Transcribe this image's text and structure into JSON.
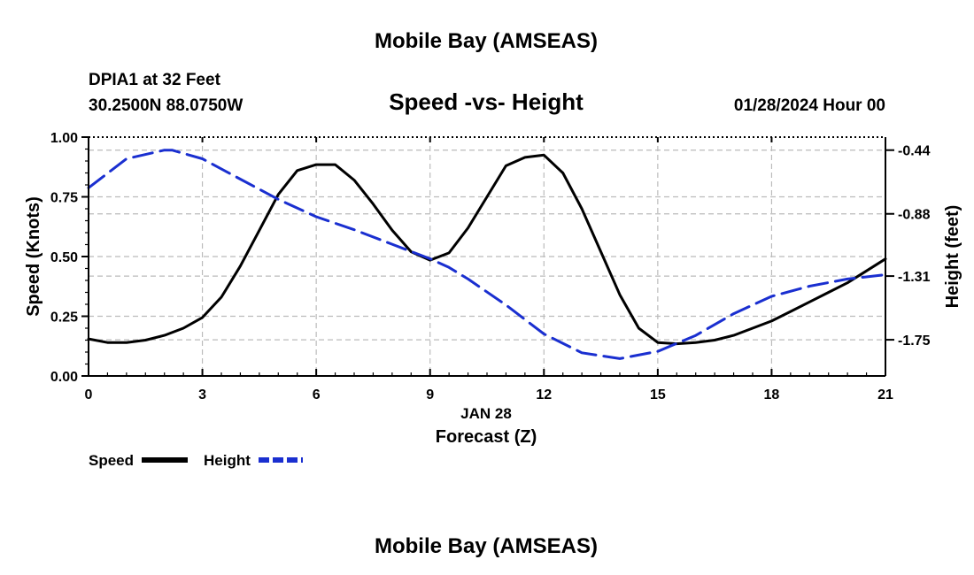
{
  "page": {
    "top_title": "Mobile Bay (AMSEAS)",
    "bottom_title": "Mobile Bay (AMSEAS)"
  },
  "station": {
    "line1": "DPIA1 at 32 Feet",
    "line2": "30.2500N  88.0750W"
  },
  "forecast_time": "01/28/2024 Hour 00",
  "legend": {
    "speed_label": "Speed",
    "height_label": "Height"
  },
  "colors": {
    "speed": "#000000",
    "height": "#1a2fd0",
    "grid": "#bbbbbb"
  },
  "chart_data": {
    "type": "line",
    "title": "Speed -vs- Height",
    "xlabel": "Forecast (Z)",
    "x_date_label": "JAN 28",
    "ylabel": "Speed (Knots)",
    "y2label": "Height (feet)",
    "xlim": [
      0,
      21
    ],
    "ylim": [
      0,
      1
    ],
    "y2lim": [
      -2.0,
      -0.35
    ],
    "x_ticks": [
      0,
      3,
      6,
      9,
      12,
      15,
      18,
      21
    ],
    "y_ticks": [
      0.0,
      0.25,
      0.5,
      0.75,
      1.0
    ],
    "y_tick_labels": [
      "0.00",
      "0.25",
      "0.50",
      "0.75",
      "1.00"
    ],
    "y2_ticks": [
      -0.44,
      -0.88,
      -1.31,
      -1.75
    ],
    "y2_tick_labels": [
      "-0.44",
      "-0.88",
      "-1.31",
      "-1.75"
    ],
    "grid": true,
    "series": [
      {
        "name": "Speed",
        "axis": "left",
        "style": "solid",
        "x": [
          0,
          0.5,
          1,
          1.5,
          2,
          2.5,
          3,
          3.5,
          4,
          4.5,
          5,
          5.5,
          6,
          6.5,
          7,
          7.5,
          8,
          8.5,
          9,
          9.5,
          10,
          10.5,
          11,
          11.5,
          12,
          12.5,
          13,
          13.5,
          14,
          14.5,
          15,
          15.5,
          16,
          16.5,
          17,
          17.5,
          18,
          18.5,
          19,
          19.5,
          20,
          20.5,
          21
        ],
        "values": [
          0.155,
          0.14,
          0.14,
          0.15,
          0.17,
          0.2,
          0.245,
          0.33,
          0.46,
          0.61,
          0.76,
          0.86,
          0.885,
          0.885,
          0.82,
          0.72,
          0.61,
          0.52,
          0.485,
          0.515,
          0.62,
          0.75,
          0.88,
          0.915,
          0.925,
          0.85,
          0.7,
          0.52,
          0.34,
          0.2,
          0.14,
          0.135,
          0.14,
          0.15,
          0.17,
          0.2,
          0.23,
          0.27,
          0.31,
          0.35,
          0.39,
          0.44,
          0.49
        ]
      },
      {
        "name": "Height",
        "axis": "right",
        "style": "dashed",
        "x": [
          0,
          1,
          2,
          2.2,
          3,
          4,
          5,
          6,
          7,
          8,
          9,
          9.5,
          10,
          11,
          12,
          13,
          14,
          15,
          16,
          17,
          18,
          19,
          20,
          21
        ],
        "values": [
          -0.7,
          -0.5,
          -0.44,
          -0.44,
          -0.5,
          -0.64,
          -0.78,
          -0.9,
          -0.99,
          -1.09,
          -1.19,
          -1.25,
          -1.33,
          -1.51,
          -1.71,
          -1.84,
          -1.88,
          -1.83,
          -1.72,
          -1.57,
          -1.45,
          -1.38,
          -1.33,
          -1.3
        ]
      }
    ]
  }
}
